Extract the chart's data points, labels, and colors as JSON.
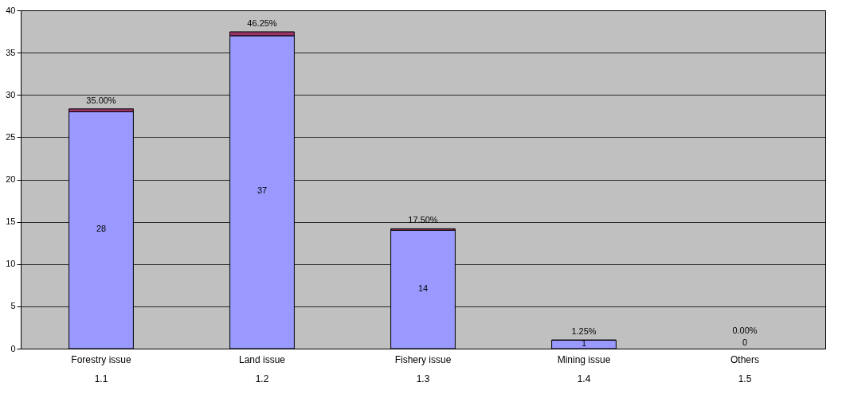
{
  "chart_data": {
    "type": "bar",
    "stacked": true,
    "categories": [
      "Forestry issue\n1.1",
      "Land issue\n1.2",
      "Fishery issue\n1.3",
      "Mining issue\n1.4",
      "Others\n1.5"
    ],
    "series": [
      {
        "color": "#9999ff",
        "values": [
          28,
          37,
          14,
          1,
          0
        ],
        "value_labels": [
          "28",
          "37",
          "14",
          "1",
          "0"
        ]
      },
      {
        "color": "#993366",
        "values": [
          0.35,
          0.4625,
          0.175,
          0.0125,
          0
        ],
        "value_labels": [
          "35.00%",
          "46.25%",
          "17.50%",
          "1.25%",
          "0.00%"
        ]
      }
    ],
    "ylim": [
      0,
      40
    ],
    "yticks": [
      0,
      5,
      10,
      15,
      20,
      25,
      30,
      35,
      40
    ],
    "grid": "y",
    "legend": false
  }
}
